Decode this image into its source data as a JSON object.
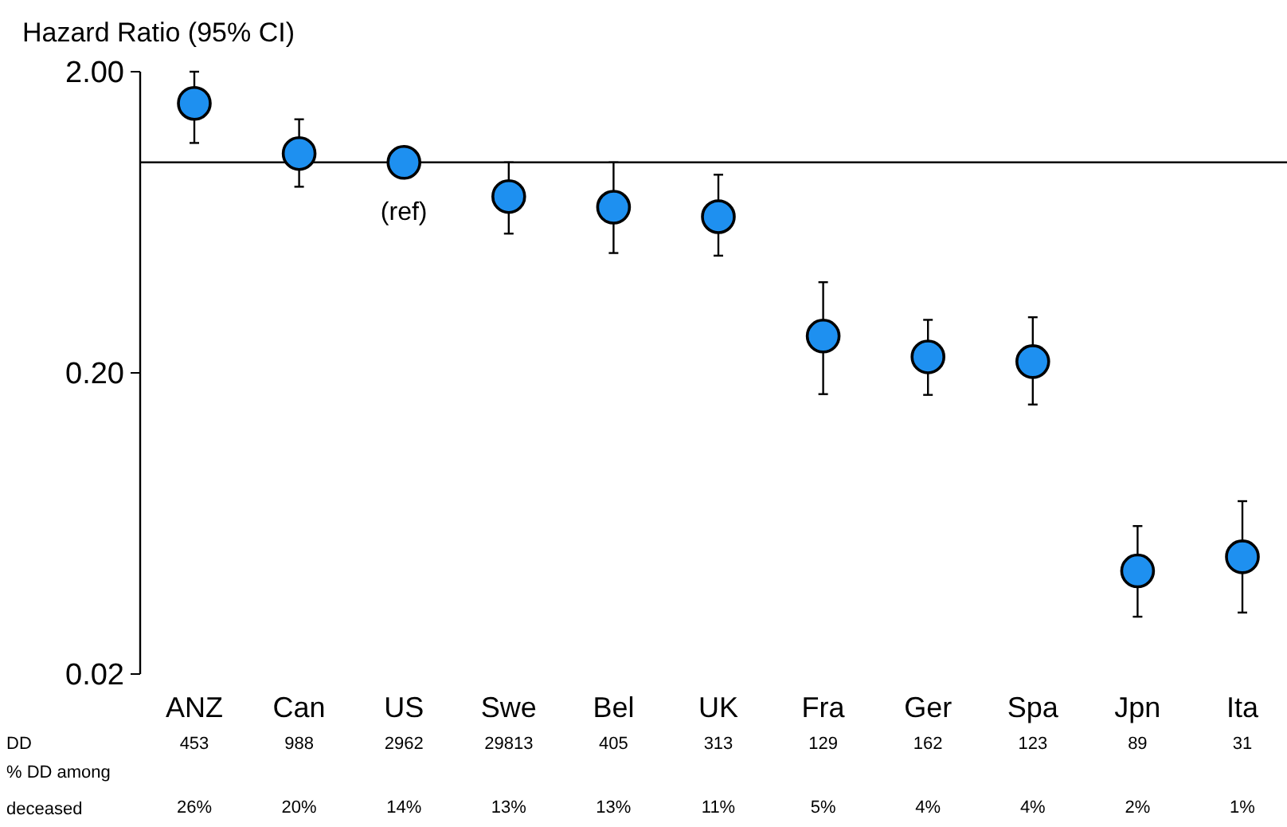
{
  "chart_data": {
    "type": "scatter",
    "title": "Hazard Ratio (95% CI)",
    "categories": [
      "ANZ",
      "Can",
      "US",
      "Swe",
      "Bel",
      "UK",
      "Fra",
      "Ger",
      "Spa",
      "Jpn",
      "Ita"
    ],
    "values": [
      1.57,
      1.07,
      1.0,
      0.77,
      0.71,
      0.66,
      0.265,
      0.226,
      0.218,
      0.044,
      0.049
    ],
    "errors": [
      [
        1.16,
        2.0
      ],
      [
        0.83,
        1.39
      ],
      null,
      [
        0.58,
        1.0
      ],
      [
        0.5,
        1.0
      ],
      [
        0.49,
        0.91
      ],
      [
        0.17,
        0.4
      ],
      [
        0.169,
        0.3
      ],
      [
        0.157,
        0.306
      ],
      [
        0.031,
        0.062
      ],
      [
        0.032,
        0.075
      ]
    ],
    "color": "#1e90f0",
    "marker": "circle",
    "log": "y",
    "grid": false,
    "ylim": [
      0.02,
      2
    ],
    "yticks": [
      {
        "value": 0.02,
        "label": "0.02"
      },
      {
        "value": 0.2,
        "label": "0.20"
      },
      {
        "value": 2,
        "label": "2.00"
      }
    ],
    "ref_lines": [
      {
        "axis": "y",
        "value": 1,
        "color": "#000000"
      }
    ],
    "annotations": [
      {
        "text": "(ref)",
        "x": "US",
        "y": 1
      },
      "DD",
      "% DD among deceased",
      "453",
      "988",
      "2962",
      "29813",
      "405",
      "313",
      "129",
      "162",
      "123",
      "89",
      "31",
      "26%",
      "20%",
      "14%",
      "13%",
      "13%",
      "11%",
      "5%",
      "4%",
      "4%",
      "2%",
      "1%"
    ]
  }
}
